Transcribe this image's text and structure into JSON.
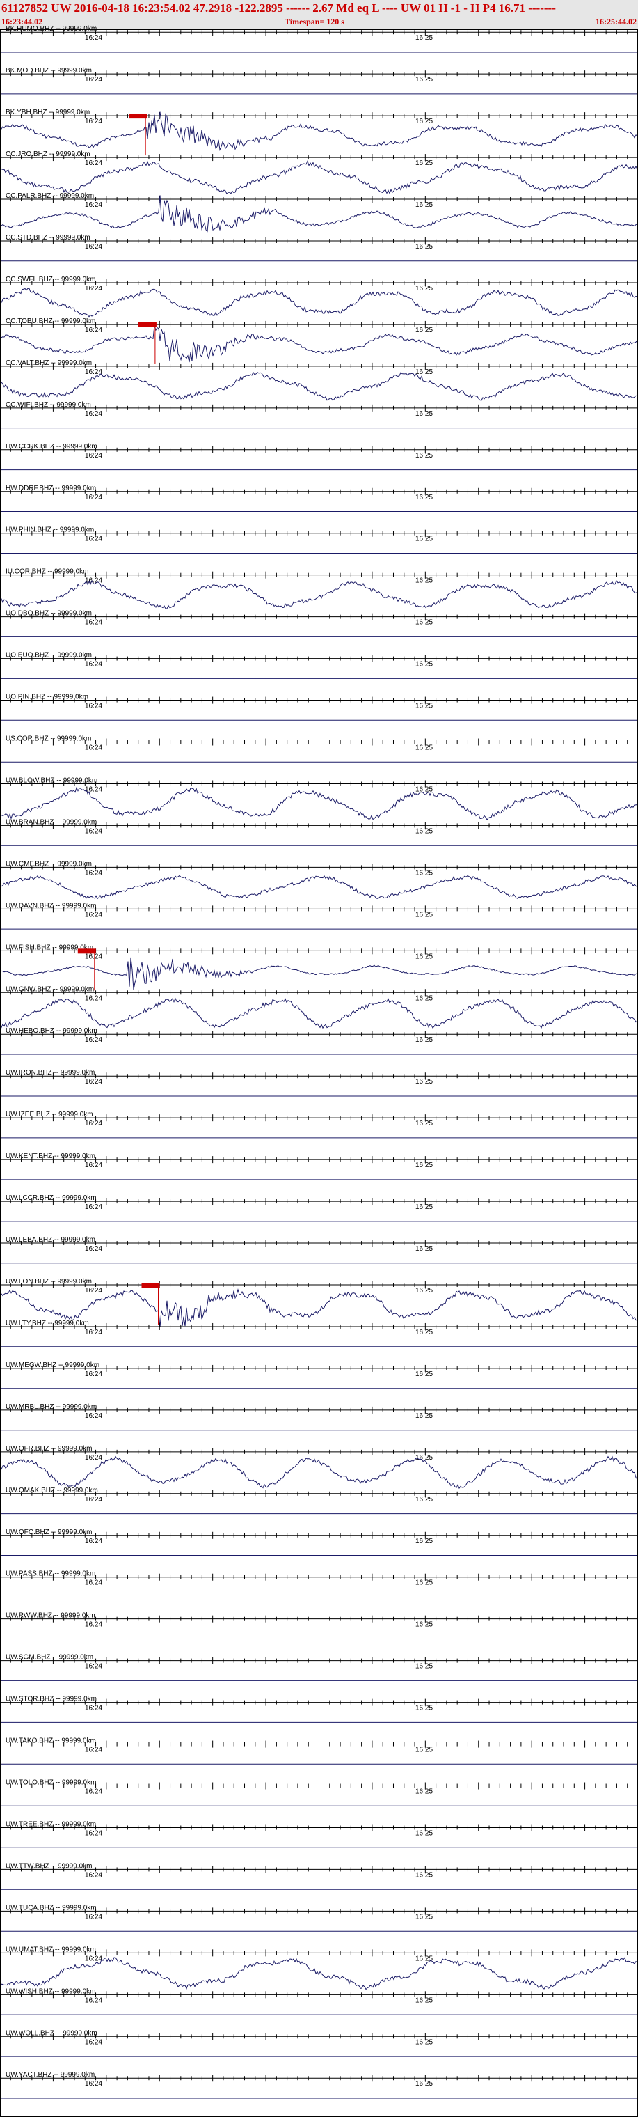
{
  "header": {
    "title": "61127852 UW 2016-04-18 16:23:54.02    47.2918 -122.2895 ------   2.67 Md  eq  L ----      UW 01  H  -1  -  H P4   16.71 -------",
    "start_time": "16:23:44.02",
    "timespan": "Timespan= 120 s",
    "end_time": "16:25:44.02"
  },
  "tick_labels": [
    "16:24",
    "16:25"
  ],
  "colors": {
    "trace": "#1a1a66",
    "pick": "#cc0000",
    "header_text": "#cc0000",
    "header_bg": "#e6e6e6"
  },
  "traces": [
    {
      "label": "BK.HUMO.BHZ -- 99999.0km",
      "amp": 0
    },
    {
      "label": "BK.MOD.BHZ -- 99999.0km",
      "amp": 0
    },
    {
      "label": "BK.YBH.BHZ -- 99999.0km",
      "amp": 0.7,
      "pick": 0.215,
      "burst": 0.23
    },
    {
      "label": "CC.JRO.BHZ -- 99999.0km",
      "amp": 0.9
    },
    {
      "label": "CC.PALR.BHZ -- 99999.0km",
      "amp": 0.5,
      "burst": 0.25
    },
    {
      "label": "CC.STD.BHZ -- 99999.0km",
      "amp": 0
    },
    {
      "label": "CC.SWFL.BHZ -- 99999.0km",
      "amp": 0.8
    },
    {
      "label": "CC.TOBU.BHZ -- 99999.0km",
      "amp": 0.6,
      "pick": 0.23,
      "burst": 0.24
    },
    {
      "label": "CC.VALT.BHZ -- 99999.0km",
      "amp": 0.8
    },
    {
      "label": "CC.WIFI.BHZ -- 99999.0km",
      "amp": 0
    },
    {
      "label": "HW.CCRK.BHZ -- 99999.0km",
      "amp": 0
    },
    {
      "label": "HW.DDRF.BHZ -- 99999.0km",
      "amp": 0
    },
    {
      "label": "HW.PHIN.BHZ -- 99999.0km",
      "amp": 0
    },
    {
      "label": "IU.COR.BHZ -- 99999.0km",
      "amp": 0.8
    },
    {
      "label": "UO.DBO.BHZ -- 99999.0km",
      "amp": 0
    },
    {
      "label": "UO.EUO.BHZ -- 99999.0km",
      "amp": 0
    },
    {
      "label": "UO.PIN.BHZ -- 99999.0km",
      "amp": 0
    },
    {
      "label": "US.COR.BHZ -- 99999.0km",
      "amp": 0
    },
    {
      "label": "UW.BLOW.BHZ -- 99999.0km",
      "amp": 0.9
    },
    {
      "label": "UW.BRAN.BHZ -- 99999.0km",
      "amp": 0
    },
    {
      "label": "UW.CMF.BHZ -- 99999.0km",
      "amp": 0.7
    },
    {
      "label": "UW.DAVN.BHZ -- 99999.0km",
      "amp": 0
    },
    {
      "label": "UW.FISH.BHZ -- 99999.0km",
      "amp": 0.3,
      "pick": 0.135,
      "burst": 0.2
    },
    {
      "label": "UW.GNW.BHZ -- 99999.0km",
      "amp": 0.9
    },
    {
      "label": "UW.HEBO.BHZ -- 99999.0km",
      "amp": 0
    },
    {
      "label": "UW.IRON.BHZ -- 99999.0km",
      "amp": 0
    },
    {
      "label": "UW.IZEE.BHZ -- 99999.0km",
      "amp": 0
    },
    {
      "label": "UW.KENT.BHZ -- 99999.0km",
      "amp": 0
    },
    {
      "label": "UW.LCCR.BHZ -- 99999.0km",
      "amp": 0
    },
    {
      "label": "UW.LEBA.BHZ -- 99999.0km",
      "amp": 0
    },
    {
      "label": "UW.LON.BHZ -- 99999.0km",
      "amp": 0.9,
      "pick": 0.235,
      "burst": 0.25
    },
    {
      "label": "UW.LTY.BHZ -- 99999.0km",
      "amp": 0
    },
    {
      "label": "UW.MEGW.BHZ -- 99999.0km",
      "amp": 0
    },
    {
      "label": "UW.MRBL.BHZ -- 99999.0km",
      "amp": 0
    },
    {
      "label": "UW.OFR.BHZ -- 99999.0km",
      "amp": 0.9
    },
    {
      "label": "UW.OMAK.BHZ -- 99999.0km",
      "amp": 0
    },
    {
      "label": "UW.OFC.BHZ -- 99999.0km",
      "amp": 0
    },
    {
      "label": "UW.PASS.BHZ -- 99999.0km",
      "amp": 0
    },
    {
      "label": "UW.RWW.BHZ -- 99999.0km",
      "amp": 0
    },
    {
      "label": "UW.SGM.BHZ -- 99999.0km",
      "amp": 0
    },
    {
      "label": "UW.STOR.BHZ -- 99999.0km",
      "amp": 0
    },
    {
      "label": "UW.TAKO.BHZ -- 99999.0km",
      "amp": 0
    },
    {
      "label": "UW.TOLO.BHZ -- 99999.0km",
      "amp": 0
    },
    {
      "label": "UW.TREE.BHZ -- 99999.0km",
      "amp": 0
    },
    {
      "label": "UW.TTW.BHZ -- 99999.0km",
      "amp": 0
    },
    {
      "label": "UW.TUCA.BHZ -- 99999.0km",
      "amp": 0
    },
    {
      "label": "UW.UMAT.BHZ -- 99999.0km",
      "amp": 0.9
    },
    {
      "label": "UW.WISH.BHZ -- 99999.0km",
      "amp": 0
    },
    {
      "label": "UW.WOLL.BHZ -- 99999.0km",
      "amp": 0
    },
    {
      "label": "UW.YACT.BHZ -- 99999.0km",
      "amp": 0
    }
  ]
}
